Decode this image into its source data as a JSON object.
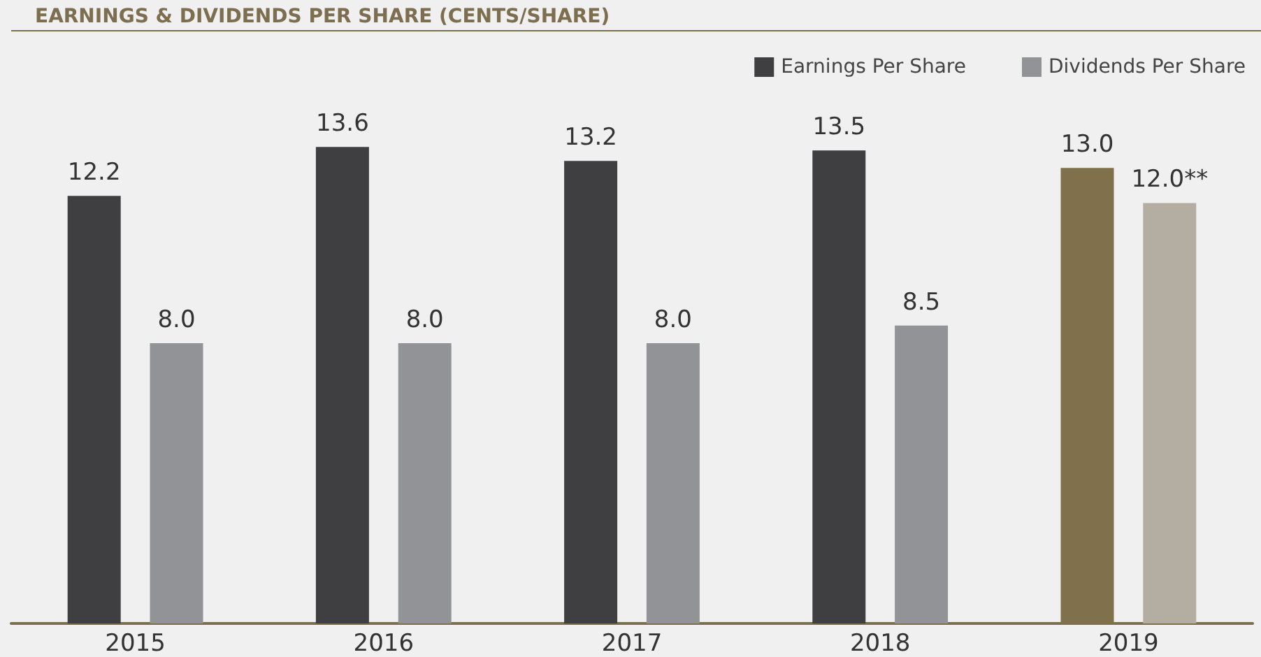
{
  "chart_data": {
    "type": "bar",
    "title": "EARNINGS & DIVIDENDS PER SHARE (CENTS/SHARE)",
    "categories": [
      "2015",
      "2016",
      "2017",
      "2018",
      "2019"
    ],
    "series": [
      {
        "name": "Earnings Per Share",
        "color": "#3f3f41",
        "colors": [
          "#3f3f41",
          "#3f3f41",
          "#3f3f41",
          "#3f3f41",
          "#80714c"
        ],
        "values": [
          12.2,
          13.6,
          13.2,
          13.5,
          13.0
        ],
        "value_labels": [
          "12.2",
          "13.6",
          "13.2",
          "13.5",
          "13.0"
        ]
      },
      {
        "name": "Dividends Per Share",
        "color": "#929396",
        "colors": [
          "#929396",
          "#929396",
          "#929396",
          "#929396",
          "#b4ada1"
        ],
        "values": [
          8.0,
          8.0,
          8.0,
          8.5,
          12.0
        ],
        "value_labels": [
          "8.0",
          "8.0",
          "8.0",
          "8.5",
          "12.0**"
        ]
      }
    ],
    "legend": "top right"
  }
}
